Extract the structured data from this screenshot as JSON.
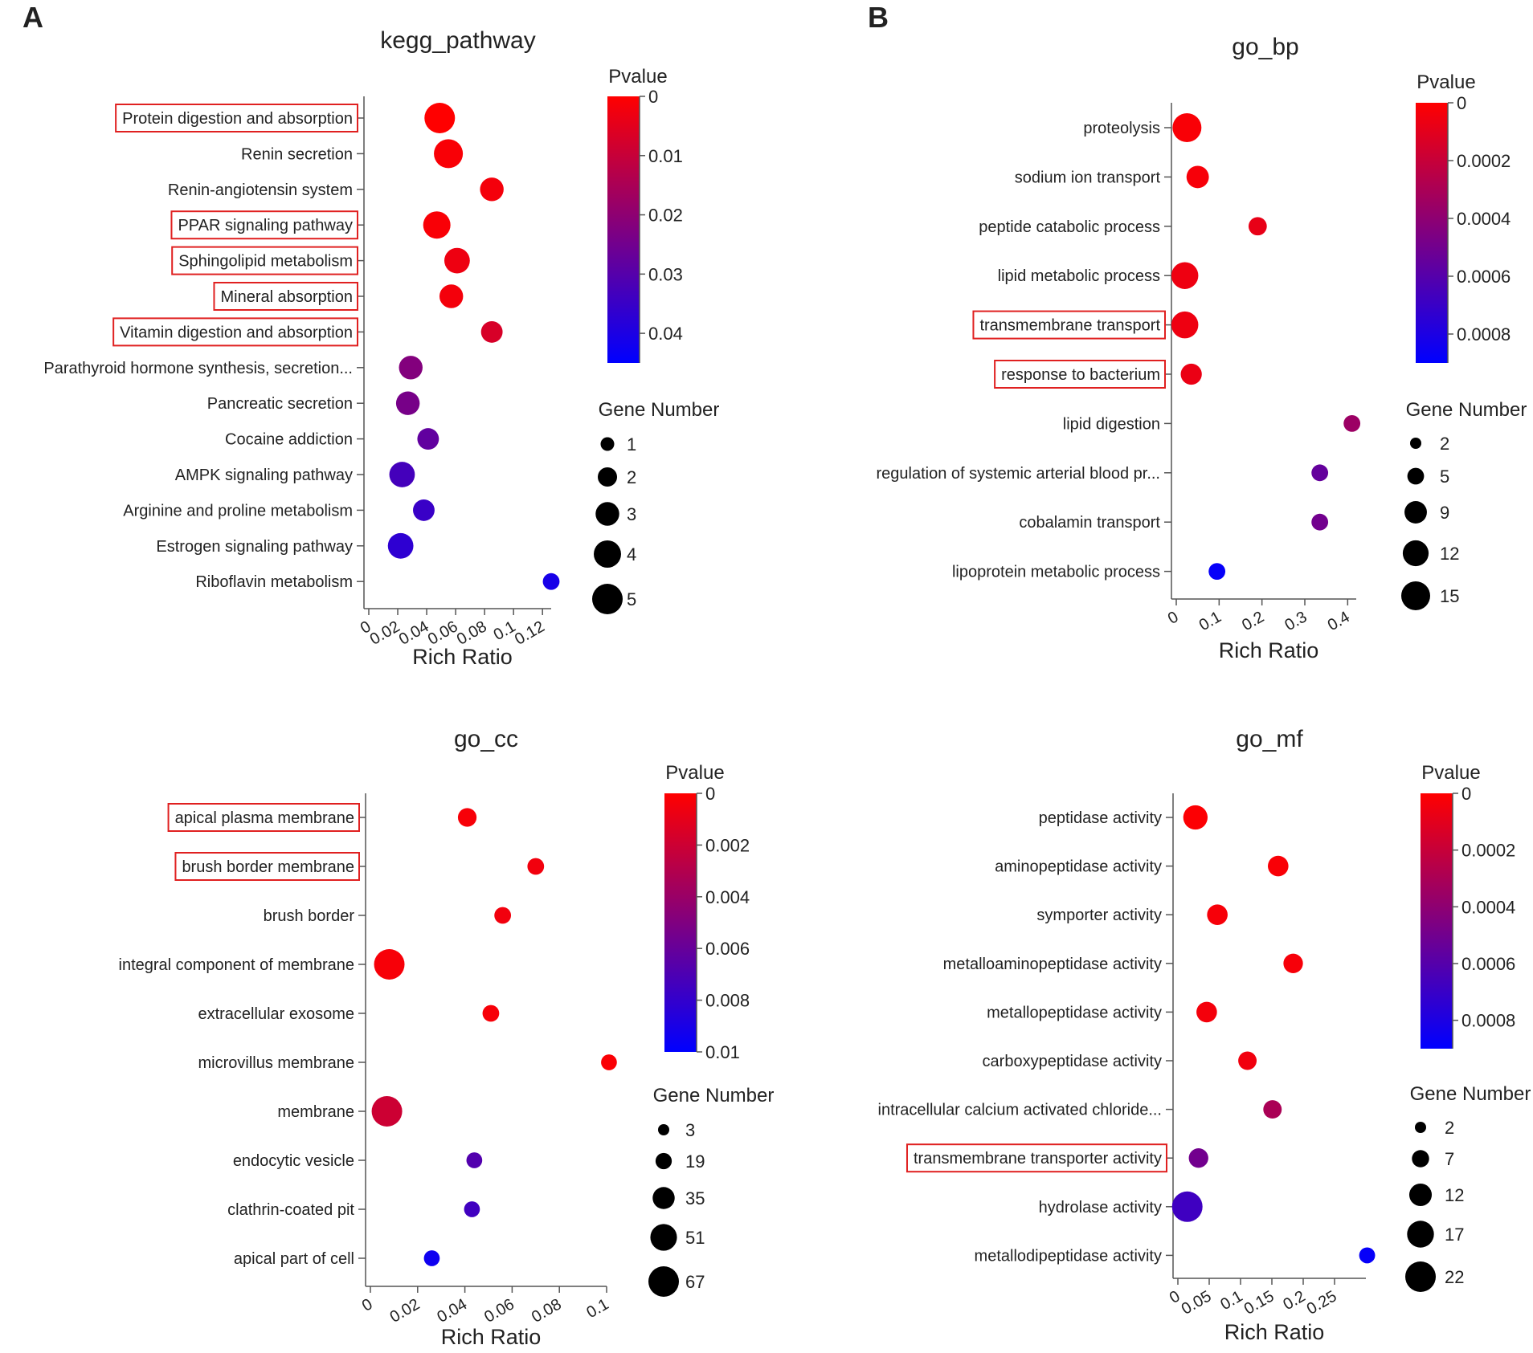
{
  "panel_labels": [
    "A",
    "B"
  ],
  "chart_data": [
    {
      "type": "scatter",
      "title": "kegg_pathway",
      "xlabel": "Rich Ratio",
      "xlim": [
        0,
        0.126
      ],
      "xticks": [
        0,
        0.02,
        0.04,
        0.06,
        0.08,
        0.1,
        0.12
      ],
      "xtick_labels": [
        "0",
        "0.02",
        "0.04",
        "0.06",
        "0.08",
        "0.1",
        "0.12"
      ],
      "categories": [
        "Protein digestion and absorption",
        "Renin secretion",
        "Renin-angiotensin system",
        "PPAR signaling pathway",
        "Sphingolipid metabolism",
        "Mineral absorption",
        "Vitamin digestion and absorption",
        "Parathyroid hormone synthesis, secretion...",
        "Pancreatic secretion",
        "Cocaine addiction",
        "AMPK signaling pathway",
        "Arginine and proline metabolism",
        "Estrogen signaling pathway",
        "Riboflavin metabolism"
      ],
      "highlighted": [
        "Protein digestion and absorption",
        "PPAR signaling pathway",
        "Sphingolipid metabolism",
        "Mineral absorption",
        "Vitamin digestion and absorption"
      ],
      "x": [
        0.049,
        0.055,
        0.085,
        0.047,
        0.061,
        0.057,
        0.085,
        0.029,
        0.027,
        0.041,
        0.023,
        0.038,
        0.022,
        0.126
      ],
      "gene_number": [
        5,
        4.5,
        3,
        4,
        3.5,
        3,
        2.5,
        3,
        3,
        2.5,
        3.5,
        2.5,
        3.5,
        1.5
      ],
      "pvalue": [
        0.0,
        0.001,
        0.002,
        0.001,
        0.003,
        0.002,
        0.007,
        0.022,
        0.024,
        0.028,
        0.033,
        0.035,
        0.037,
        0.041
      ],
      "colorbar": {
        "title": "Pvalue",
        "min": 0,
        "max": 0.045,
        "ticks": [
          0,
          0.01,
          0.02,
          0.03,
          0.04
        ],
        "tick_labels": [
          "0",
          "0.01",
          "0.02",
          "0.03",
          "0.04"
        ]
      },
      "size_legend": {
        "title": "Gene Number",
        "values": [
          1,
          2,
          3,
          4,
          5
        ],
        "labels": [
          "1",
          "2",
          "3",
          "4",
          "5"
        ],
        "max": 5
      }
    },
    {
      "type": "scatter",
      "title": "go_bp",
      "xlabel": "Rich Ratio",
      "xlim": [
        0,
        0.42
      ],
      "xticks": [
        0,
        0.1,
        0.2,
        0.3,
        0.4
      ],
      "xtick_labels": [
        "0",
        "0.1",
        "0.2",
        "0.3",
        "0.4"
      ],
      "categories": [
        "proteolysis",
        "sodium ion transport",
        "peptide catabolic process",
        "lipid metabolic process",
        "transmembrane transport",
        "response to bacterium",
        "lipid digestion",
        "regulation of systemic arterial blood pr...",
        "cobalamin transport",
        "lipoprotein metabolic process"
      ],
      "highlighted": [
        "transmembrane transport",
        "response to bacterium"
      ],
      "x": [
        0.025,
        0.05,
        0.19,
        0.02,
        0.02,
        0.035,
        0.41,
        0.335,
        0.335,
        0.095
      ],
      "gene_number": [
        15,
        9,
        6,
        13,
        13,
        8,
        5,
        5,
        5,
        5
      ],
      "pvalue": [
        2e-05,
        3e-05,
        8e-05,
        6e-05,
        6e-05,
        7e-05,
        0.00035,
        0.00055,
        0.0005,
        0.00088
      ],
      "colorbar": {
        "title": "Pvalue",
        "min": 0,
        "max": 0.0009,
        "ticks": [
          0,
          0.0002,
          0.0004,
          0.0006,
          0.0008
        ],
        "tick_labels": [
          "0",
          "0.0002",
          "0.0004",
          "0.0006",
          "0.0008"
        ]
      },
      "size_legend": {
        "title": "Gene Number",
        "values": [
          2,
          5,
          9,
          12,
          15
        ],
        "labels": [
          "2",
          "5",
          "9",
          "12",
          "15"
        ],
        "max": 15
      }
    },
    {
      "type": "scatter",
      "title": "go_cc",
      "xlabel": "Rich Ratio",
      "xlim": [
        0,
        0.1
      ],
      "xticks": [
        0,
        0.02,
        0.04,
        0.06,
        0.08,
        0.1
      ],
      "xtick_labels": [
        "0",
        "0.02",
        "0.04",
        "0.06",
        "0.08",
        "0.1"
      ],
      "categories": [
        "apical plasma membrane",
        "brush border membrane",
        "brush border",
        "integral component of membrane",
        "extracellular exosome",
        "microvillus membrane",
        "membrane",
        "endocytic vesicle",
        "clathrin-coated pit",
        "apical part of cell"
      ],
      "highlighted": [
        "apical plasma membrane",
        "brush border membrane"
      ],
      "x": [
        0.041,
        0.07,
        0.056,
        0.008,
        0.051,
        0.101,
        0.007,
        0.044,
        0.043,
        0.026
      ],
      "gene_number": [
        25,
        20,
        20,
        67,
        20,
        18,
        67,
        18,
        18,
        18
      ],
      "pvalue": [
        0.0003,
        0.0005,
        0.0005,
        0.0003,
        0.0003,
        0.0002,
        0.002,
        0.0068,
        0.0075,
        0.0094
      ],
      "colorbar": {
        "title": "Pvalue",
        "min": 0,
        "max": 0.01,
        "ticks": [
          0,
          0.002,
          0.004,
          0.006,
          0.008,
          0.01
        ],
        "tick_labels": [
          "0",
          "0.002",
          "0.004",
          "0.006",
          "0.008",
          "0.01"
        ]
      },
      "size_legend": {
        "title": "Gene Number",
        "values": [
          3,
          19,
          35,
          51,
          67
        ],
        "labels": [
          "3",
          "19",
          "35",
          "51",
          "67"
        ],
        "max": 67
      }
    },
    {
      "type": "scatter",
      "title": "go_mf",
      "xlabel": "Rich Ratio",
      "xlim": [
        0,
        0.3
      ],
      "xticks": [
        0,
        0.05,
        0.1,
        0.15,
        0.2,
        0.25
      ],
      "xtick_labels": [
        "0",
        "0.05",
        "0.1",
        "0.15",
        "0.2",
        "0.25"
      ],
      "categories": [
        "peptidase activity",
        "aminopeptidase activity",
        "symporter activity",
        "metalloaminopeptidase activity",
        "metallopeptidase activity",
        "carboxypeptidase activity",
        "intracellular calcium activated chloride...",
        "transmembrane transporter activity",
        "hydrolase activity",
        "metallodipeptidase activity"
      ],
      "highlighted": [
        "transmembrane transporter activity"
      ],
      "x": [
        0.028,
        0.16,
        0.063,
        0.184,
        0.046,
        0.111,
        0.151,
        0.033,
        0.015,
        0.302
      ],
      "gene_number": [
        14,
        10,
        10,
        9,
        10,
        8,
        8,
        9,
        22,
        6
      ],
      "pvalue": [
        1e-05,
        2e-05,
        3e-05,
        3e-05,
        4e-05,
        5e-05,
        0.0003,
        0.0005,
        0.00068,
        0.00088
      ],
      "colorbar": {
        "title": "Pvalue",
        "min": 0,
        "max": 0.0009,
        "ticks": [
          0,
          0.0002,
          0.0004,
          0.0006,
          0.0008
        ],
        "tick_labels": [
          "0",
          "0.0002",
          "0.0004",
          "0.0006",
          "0.0008"
        ]
      },
      "size_legend": {
        "title": "Gene Number",
        "values": [
          2,
          7,
          12,
          17,
          22
        ],
        "labels": [
          "2",
          "7",
          "12",
          "17",
          "22"
        ],
        "max": 22
      }
    }
  ]
}
